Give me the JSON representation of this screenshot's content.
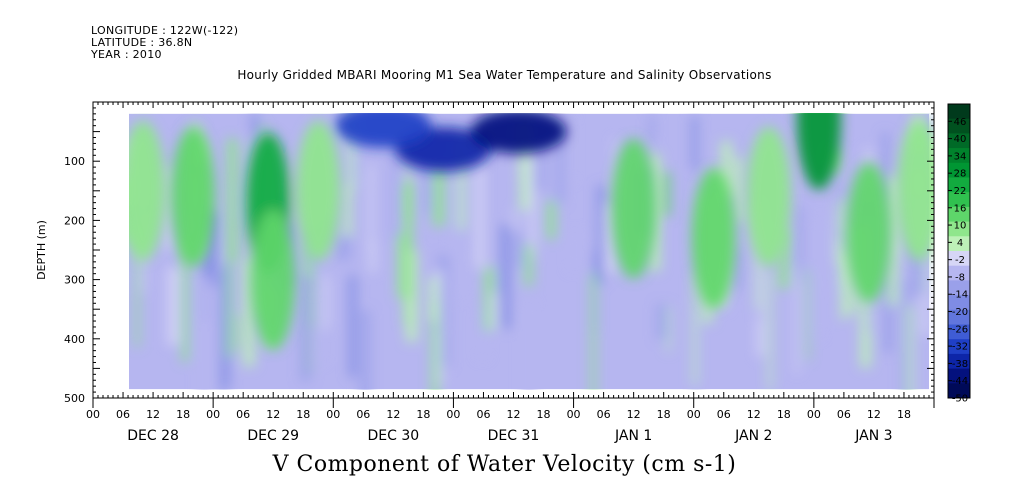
{
  "header": {
    "longitude": "LONGITUDE : 122W(-122)",
    "latitude": "LATITUDE : 36.8N",
    "year": "YEAR : 2010"
  },
  "title": "Hourly Gridded MBARI Mooring M1 Sea Water Temperature and Salinity Observations",
  "bottom_title": "V Component of Water Velocity (cm s-1)",
  "chart_data": {
    "type": "heatmap",
    "title": "Hourly Gridded MBARI Mooring M1 Sea Water Temperature and Salinity Observations",
    "xlabel": "",
    "ylabel": "DEPTH (m)",
    "variable_label": "V Component of Water Velocity (cm s-1)",
    "y_reversed": true,
    "ylim": [
      0,
      500
    ],
    "y_ticks": [
      100,
      200,
      300,
      400,
      500
    ],
    "y_tick_labels": [
      "100",
      "200",
      "300",
      "400",
      "500"
    ],
    "x_hour_labels": [
      "00",
      "06",
      "12",
      "18",
      "00",
      "06",
      "12",
      "18",
      "00",
      "06",
      "12",
      "18",
      "00",
      "06",
      "12",
      "18",
      "00",
      "06",
      "12",
      "18",
      "00",
      "06",
      "12",
      "18",
      "00",
      "06",
      "12",
      "18"
    ],
    "x_day_labels": [
      "DEC 28",
      "DEC 29",
      "DEC 30",
      "DEC 31",
      "JAN  1",
      "JAN  2",
      "JAN  3"
    ],
    "x_range_hours": [
      0,
      168
    ],
    "data_time_range_hours": [
      5,
      167
    ],
    "data_depth_range_m": [
      20,
      485
    ],
    "colorbar": {
      "levels": [
        46,
        40,
        34,
        28,
        22,
        16,
        10,
        4,
        -2,
        -8,
        -14,
        -20,
        -26,
        -32,
        -38,
        -44,
        -50
      ],
      "labels": [
        "46",
        "40",
        "34",
        "28",
        "22",
        "16",
        "10",
        "4",
        "-2",
        "-8",
        "-14",
        "-20",
        "-26",
        "-32",
        "-38",
        "-44",
        "-50"
      ],
      "min": -50,
      "max": 52
    },
    "features": [
      {
        "time_hours": 35,
        "depth_m": 170,
        "value": 22
      },
      {
        "time_hours": 36,
        "depth_m": 300,
        "value": 12
      },
      {
        "time_hours": 10,
        "depth_m": 150,
        "value": 10
      },
      {
        "time_hours": 20,
        "depth_m": 160,
        "value": 12
      },
      {
        "time_hours": 45,
        "depth_m": 150,
        "value": 10
      },
      {
        "time_hours": 70,
        "depth_m": 80,
        "value": -38
      },
      {
        "time_hours": 85,
        "depth_m": 50,
        "value": -44
      },
      {
        "time_hours": 58,
        "depth_m": 40,
        "value": -32
      },
      {
        "time_hours": 108,
        "depth_m": 180,
        "value": 12
      },
      {
        "time_hours": 124,
        "depth_m": 230,
        "value": 16
      },
      {
        "time_hours": 135,
        "depth_m": 160,
        "value": 10
      },
      {
        "time_hours": 155,
        "depth_m": 220,
        "value": 14
      },
      {
        "time_hours": 165,
        "depth_m": 150,
        "value": 8
      },
      {
        "time_hours": 145,
        "depth_m": 30,
        "value": 28
      }
    ],
    "colors": [
      "#003a1c",
      "#00511f",
      "#006a27",
      "#00822c",
      "#009633",
      "#12ab3f",
      "#30c14f",
      "#5ed66a",
      "#8fe68c",
      "#bdf1b8",
      "#d6d6f6",
      "#b6b6f0",
      "#9aa0ea",
      "#7f8ce4",
      "#6176dd",
      "#3f5cd4",
      "#1f3fc6",
      "#0d25a8",
      "#04117e",
      "#000a58"
    ]
  }
}
